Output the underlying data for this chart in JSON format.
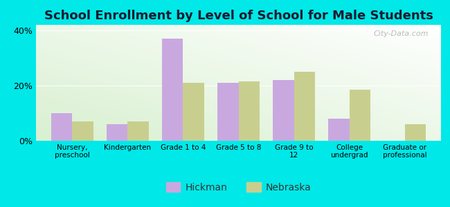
{
  "title": "School Enrollment by Level of School for Male Students",
  "categories": [
    "Nursery,\npreschool",
    "Kindergarten",
    "Grade 1 to 4",
    "Grade 5 to 8",
    "Grade 9 to\n12",
    "College\nundergrad",
    "Graduate or\nprofessional"
  ],
  "hickman": [
    10,
    6,
    37,
    21,
    22,
    8,
    0
  ],
  "nebraska": [
    7,
    7,
    21,
    21.5,
    25,
    18.5,
    6
  ],
  "hickman_color": "#c9a8e0",
  "nebraska_color": "#c8cf8e",
  "background_color": "#00e8e8",
  "ylim": [
    0,
    42
  ],
  "yticks": [
    0,
    20,
    40
  ],
  "ytick_labels": [
    "0%",
    "20%",
    "40%"
  ],
  "bar_width": 0.38,
  "title_fontsize": 13,
  "legend_labels": [
    "Hickman",
    "Nebraska"
  ],
  "watermark": "City-Data.com"
}
